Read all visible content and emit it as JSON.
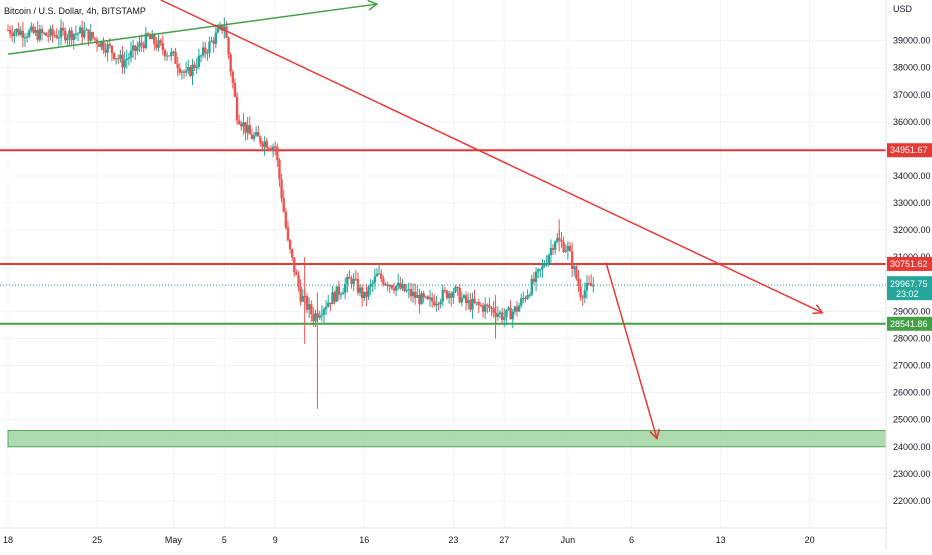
{
  "header": {
    "title": "Bitcoin / U.S. Dollar, 4h, BITSTAMP",
    "currency": "USD"
  },
  "colors": {
    "up": "#26a69a",
    "down": "#ef5350",
    "resistance": "#e53935",
    "support": "#43a047",
    "zone_fill": "#a5d6a7",
    "zone_border": "#43a047",
    "last_price_bg": "#26a69a",
    "grid": "#f0f3fa",
    "axis_text": "#131722"
  },
  "chart_data": {
    "type": "candlestick",
    "title": "Bitcoin / U.S. Dollar, 4h, BITSTAMP",
    "ylabel": "USD",
    "ylim": [
      21000,
      40500
    ],
    "y_ticks": [
      22000,
      23000,
      24000,
      25000,
      26000,
      27000,
      28000,
      29000,
      30000,
      31000,
      32000,
      33000,
      34000,
      35000,
      36000,
      37000,
      38000,
      39000
    ],
    "y_tick_labels": [
      "22000.00",
      "23000.00",
      "24000.00",
      "25000.00",
      "26000.00",
      "27000.00",
      "28000.00",
      "29000.00",
      "30000.00",
      "31000.00",
      "32000.00",
      "33000.00",
      "34000.00",
      "35000.00",
      "36000.00",
      "37000.00",
      "38000.00",
      "39000.00"
    ],
    "x_range": [
      "2022-04-18",
      "2022-06-26"
    ],
    "x_ticks": [
      {
        "date": "2022-04-18",
        "label": "18"
      },
      {
        "date": "2022-04-25",
        "label": "25"
      },
      {
        "date": "2022-05-01",
        "label": "May"
      },
      {
        "date": "2022-05-05",
        "label": "5"
      },
      {
        "date": "2022-05-09",
        "label": "9"
      },
      {
        "date": "2022-05-16",
        "label": "16"
      },
      {
        "date": "2022-05-23",
        "label": "23"
      },
      {
        "date": "2022-05-27",
        "label": "27"
      },
      {
        "date": "2022-06-01",
        "label": "Jun"
      },
      {
        "date": "2022-06-06",
        "label": "6"
      },
      {
        "date": "2022-06-13",
        "label": "13"
      },
      {
        "date": "2022-06-20",
        "label": "20"
      }
    ],
    "grid": true,
    "price_path": [
      [
        "2022-04-18",
        39400
      ],
      [
        "2022-04-21",
        39200
      ],
      [
        "2022-04-24",
        39300
      ],
      [
        "2022-04-26",
        38700
      ],
      [
        "2022-04-27",
        38200
      ],
      [
        "2022-04-29",
        39100
      ],
      [
        "2022-05-01",
        38400
      ],
      [
        "2022-05-02",
        37700
      ],
      [
        "2022-05-03",
        38300
      ],
      [
        "2022-05-05",
        39600
      ],
      [
        "2022-05-06",
        36300
      ],
      [
        "2022-05-07",
        35500
      ],
      [
        "2022-05-09",
        35100
      ],
      [
        "2022-05-10",
        31500
      ],
      [
        "2022-05-11",
        29600
      ],
      [
        "2022-05-12",
        28800
      ],
      [
        "2022-05-13",
        29300
      ],
      [
        "2022-05-15",
        30200
      ],
      [
        "2022-05-16",
        29500
      ],
      [
        "2022-05-17",
        30300
      ],
      [
        "2022-05-19",
        29800
      ],
      [
        "2022-05-21",
        29300
      ],
      [
        "2022-05-23",
        29800
      ],
      [
        "2022-05-24",
        29300
      ],
      [
        "2022-05-26",
        29100
      ],
      [
        "2022-05-27",
        28800
      ],
      [
        "2022-05-28",
        29100
      ],
      [
        "2022-05-30",
        30600
      ],
      [
        "2022-05-31",
        31700
      ],
      [
        "2022-06-01",
        31300
      ],
      [
        "2022-06-02",
        29700
      ],
      [
        "2022-06-03",
        29967.75
      ]
    ],
    "wicks": [
      {
        "date": "2022-05-12",
        "low": 25400,
        "high": 29700
      },
      {
        "date": "2022-05-11",
        "low": 27800,
        "high": 31000
      },
      {
        "date": "2022-05-26",
        "low": 28000,
        "high": 29600
      },
      {
        "date": "2022-05-31",
        "low": 31200,
        "high": 32400
      }
    ],
    "horizontal_lines": [
      {
        "name": "resistance-34951",
        "price": 34951.67,
        "label": "34951.67",
        "color": "#e53935"
      },
      {
        "name": "resistance-30751",
        "price": 30751.62,
        "label": "30751.62",
        "color": "#e53935"
      },
      {
        "name": "support-28541",
        "price": 28541.86,
        "label": "28541.86",
        "color": "#43a047"
      }
    ],
    "zone": {
      "from": 24000,
      "to": 24600,
      "start": "2022-04-18",
      "end": "2022-06-26"
    },
    "trend_lines": [
      {
        "name": "green-uptrend",
        "start": [
          "2022-04-18",
          38500
        ],
        "end": [
          "2022-05-17",
          40350
        ],
        "color": "#43a047",
        "arrow": true
      },
      {
        "name": "red-downtrend",
        "start": [
          "2022-04-30",
          40500
        ],
        "end": [
          "2022-06-21",
          28950
        ],
        "color": "#e53935",
        "arrow": true
      },
      {
        "name": "red-projection",
        "start": [
          "2022-06-04",
          30800
        ],
        "end": [
          "2022-06-08",
          24300
        ],
        "color": "#e53935",
        "arrow": true
      }
    ],
    "last_price": {
      "price": 29967.75,
      "label": "29967.75",
      "countdown": "23:02"
    }
  }
}
